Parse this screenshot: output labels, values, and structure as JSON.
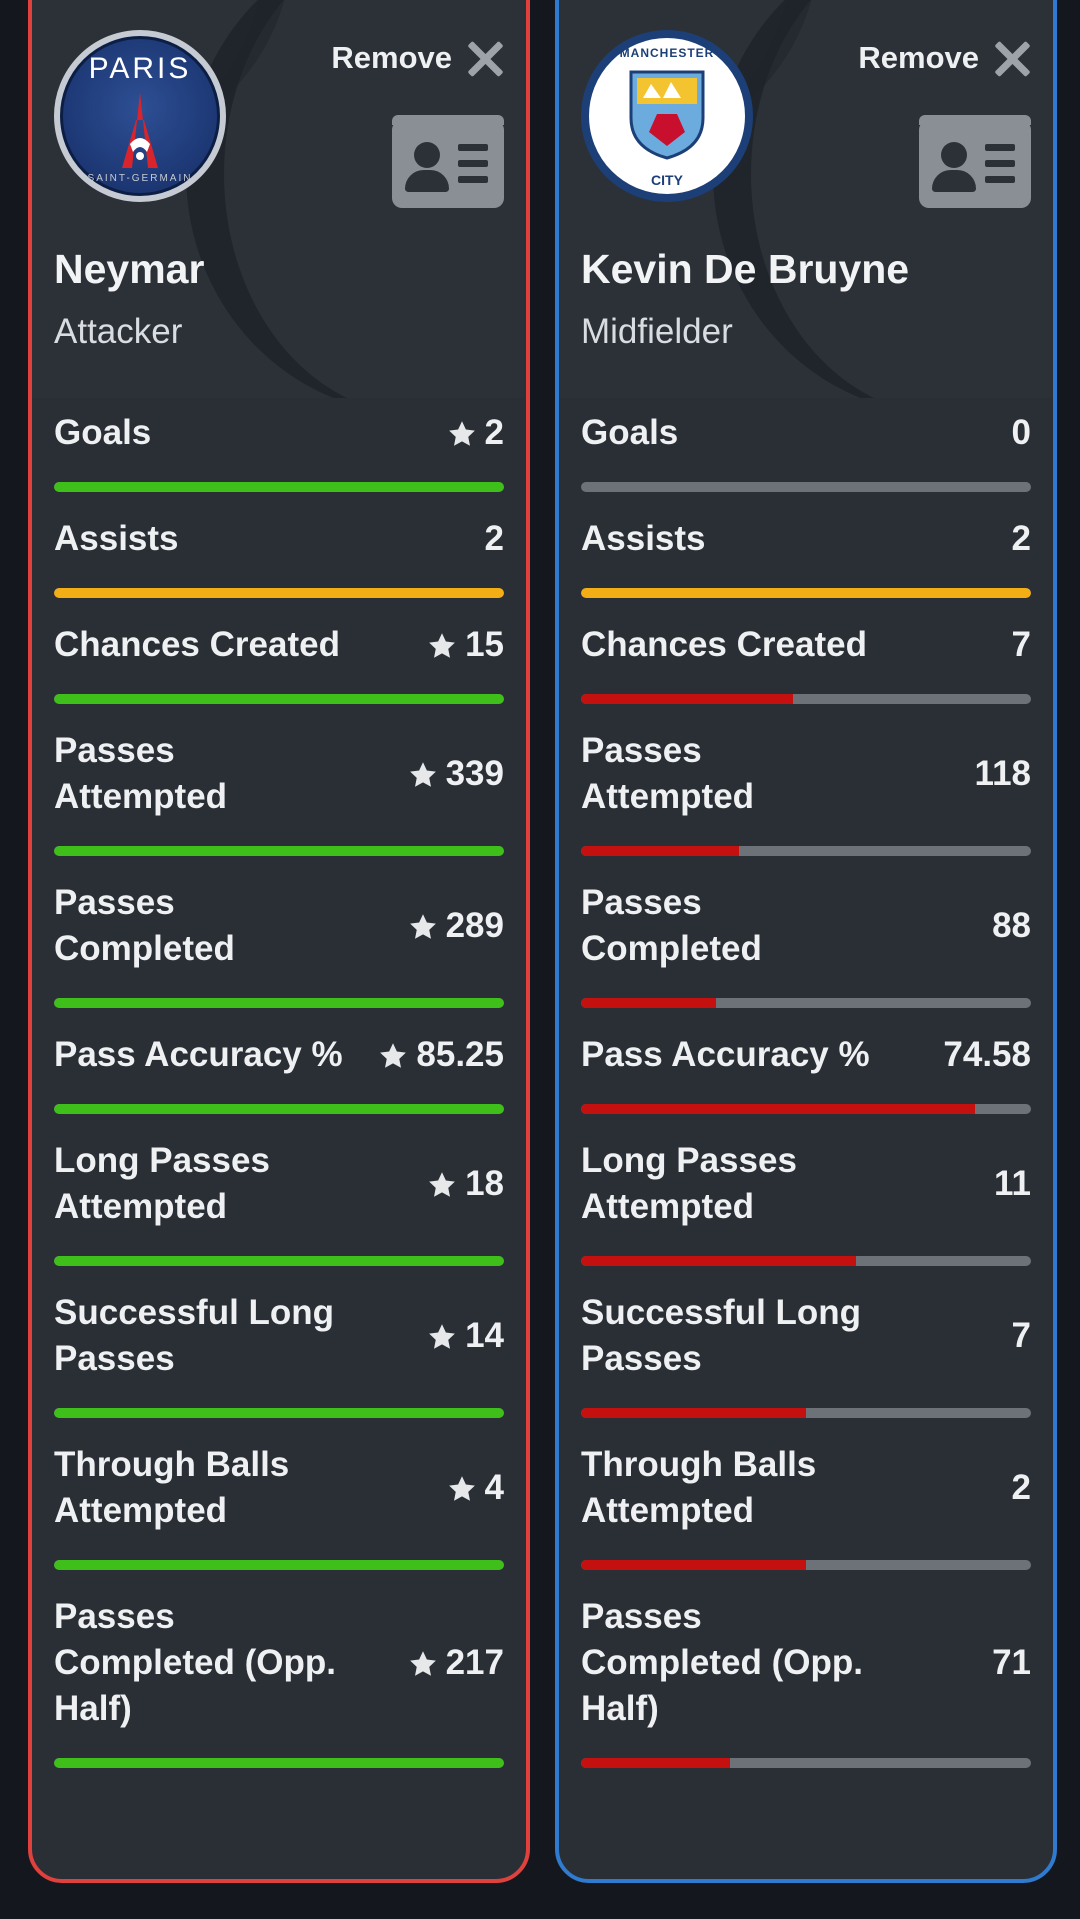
{
  "colors": {
    "better": "#3fbf1a",
    "equal": "#f2ae14",
    "worse": "#c4100f",
    "track": "#6d7278",
    "left_border": "#e0413d",
    "right_border": "#2e7bcf"
  },
  "players": [
    {
      "side": "left",
      "crest": "psg-crest",
      "crest_title": "PARIS",
      "crest_sub": "SAINT-GERMAIN",
      "remove_label": "Remove",
      "name": "Neymar",
      "position": "Attacker",
      "stats": [
        {
          "label": "Goals",
          "value": "2",
          "star": true,
          "level": 1,
          "color": "better"
        },
        {
          "label": "Assists",
          "value": "2",
          "star": false,
          "level": 1,
          "color": "equal"
        },
        {
          "label": "Chances Created",
          "value": "15",
          "star": true,
          "level": 1,
          "color": "better"
        },
        {
          "label": "Passes Attempted",
          "value": "339",
          "star": true,
          "level": 1,
          "color": "better"
        },
        {
          "label": "Passes Completed",
          "value": "289",
          "star": true,
          "level": 1,
          "color": "better"
        },
        {
          "label": "Pass Accuracy %",
          "value": "85.25",
          "star": true,
          "level": 1,
          "color": "better"
        },
        {
          "label": "Long Passes Attempted",
          "value": "18",
          "star": true,
          "level": 1,
          "color": "better"
        },
        {
          "label": "Successful Long Passes",
          "value": "14",
          "star": true,
          "level": 1,
          "color": "better"
        },
        {
          "label": "Through Balls Attempted",
          "value": "4",
          "star": true,
          "level": 1,
          "color": "better"
        },
        {
          "label": "Passes Completed (Opp. Half)",
          "value": "217",
          "star": true,
          "level": 1,
          "color": "better"
        }
      ]
    },
    {
      "side": "right",
      "crest": "mci-crest",
      "crest_title": "MANCHESTER",
      "crest_sub": "CITY",
      "remove_label": "Remove",
      "name": "Kevin De Bruyne",
      "position": "Midfielder",
      "stats": [
        {
          "label": "Goals",
          "value": "0",
          "star": false,
          "level": 0,
          "color": "worse"
        },
        {
          "label": "Assists",
          "value": "2",
          "star": false,
          "level": 1,
          "color": "equal"
        },
        {
          "label": "Chances Created",
          "value": "7",
          "star": false,
          "level": 0.47,
          "color": "worse"
        },
        {
          "label": "Passes Attempted",
          "value": "118",
          "star": false,
          "level": 0.35,
          "color": "worse"
        },
        {
          "label": "Passes Completed",
          "value": "88",
          "star": false,
          "level": 0.3,
          "color": "worse"
        },
        {
          "label": "Pass Accuracy %",
          "value": "74.58",
          "star": false,
          "level": 0.875,
          "color": "worse"
        },
        {
          "label": "Long Passes Attempted",
          "value": "11",
          "star": false,
          "level": 0.61,
          "color": "worse"
        },
        {
          "label": "Successful Long Passes",
          "value": "7",
          "star": false,
          "level": 0.5,
          "color": "worse"
        },
        {
          "label": "Through Balls Attempted",
          "value": "2",
          "star": false,
          "level": 0.5,
          "color": "worse"
        },
        {
          "label": "Passes Completed (Opp. Half)",
          "value": "71",
          "star": false,
          "level": 0.33,
          "color": "worse"
        }
      ]
    }
  ]
}
